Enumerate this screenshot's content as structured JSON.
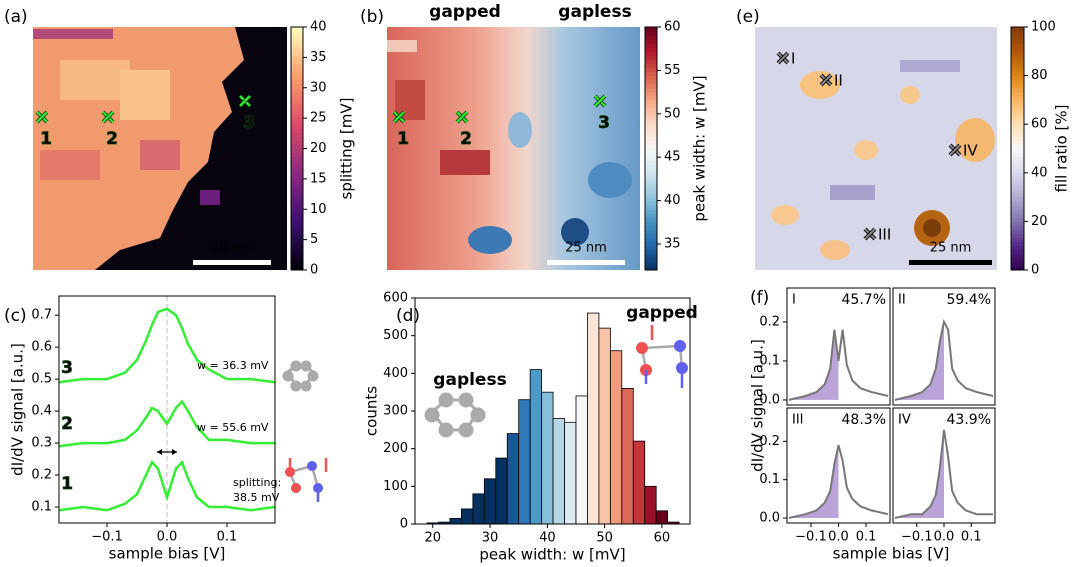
{
  "chart_data": [
    {
      "type": "heatmap",
      "panel": "(a)",
      "colorbar_label": "splitting [mV]",
      "clim": [
        0,
        40
      ],
      "cticks": [
        0,
        5,
        10,
        15,
        20,
        25,
        30,
        35,
        40
      ],
      "colormap": [
        "#000004",
        "#3b0f70",
        "#8c2981",
        "#de4968",
        "#fe9f6d",
        "#fcfdbf"
      ],
      "markers": [
        "1",
        "2",
        "3"
      ],
      "scalebar": "25 nm"
    },
    {
      "type": "heatmap",
      "panel": "(b)",
      "colorbar_label": "peak width: w [mV]",
      "clim": [
        32,
        60
      ],
      "cticks": [
        35,
        40,
        45,
        50,
        55,
        60
      ],
      "colormap": [
        "#053061",
        "#2166ac",
        "#4393c3",
        "#92c5de",
        "#d1e5f0",
        "#f7f7f7",
        "#fddbc7",
        "#f4a582",
        "#d6604d",
        "#b2182b",
        "#67001f"
      ],
      "markers": [
        "1",
        "2",
        "3"
      ],
      "scalebar": "25 nm",
      "annotations": [
        "gapped",
        "gapless"
      ]
    },
    {
      "type": "line",
      "panel": "(c)",
      "xlabel": "sample bias [V]",
      "ylabel": "dI/dV signal [a.u.]",
      "xlim": [
        -0.18,
        0.18
      ],
      "ylim": [
        0.05,
        0.76
      ],
      "xticks": [
        {
          "value": -0.1,
          "label": "−0.1"
        },
        {
          "value": 0,
          "label": "0.0"
        },
        0.1
      ],
      "yticks": [
        0.1,
        0.2,
        0.3,
        0.4,
        0.5,
        0.6,
        0.7
      ],
      "x": [
        -0.18,
        -0.14,
        -0.1,
        -0.07,
        -0.05,
        -0.035,
        -0.025,
        -0.015,
        0,
        0.015,
        0.025,
        0.035,
        0.05,
        0.07,
        0.1,
        0.14,
        0.18
      ],
      "series": [
        {
          "name": "1",
          "color": "#33ee33",
          "values": [
            0.09,
            0.1,
            0.09,
            0.11,
            0.14,
            0.2,
            0.24,
            0.22,
            0.13,
            0.22,
            0.24,
            0.19,
            0.13,
            0.1,
            0.1,
            0.09,
            0.1
          ]
        },
        {
          "name": "2",
          "color": "#33ee33",
          "values": [
            0.29,
            0.3,
            0.3,
            0.31,
            0.34,
            0.38,
            0.41,
            0.4,
            0.36,
            0.41,
            0.43,
            0.4,
            0.35,
            0.31,
            0.31,
            0.3,
            0.3
          ]
        },
        {
          "name": "3",
          "color": "#33ee33",
          "values": [
            0.49,
            0.5,
            0.5,
            0.52,
            0.56,
            0.62,
            0.67,
            0.71,
            0.72,
            0.7,
            0.66,
            0.61,
            0.56,
            0.53,
            0.5,
            0.5,
            0.49
          ]
        }
      ],
      "annotations": [
        "w = 36.3 mV",
        "w = 55.6 mV",
        "splitting:",
        "38.5 mV"
      ]
    },
    {
      "type": "histogram",
      "panel": "(d)",
      "xlabel": "peak width: w [mV]",
      "ylabel": "counts",
      "xlim": [
        16.9,
        64.9
      ],
      "ylim": [
        0,
        600
      ],
      "xticks": [
        20,
        30,
        40,
        50,
        60
      ],
      "yticks": [
        0,
        100,
        200,
        300,
        400,
        500,
        600
      ],
      "bins": [
        19,
        21,
        23,
        25,
        27,
        29,
        31,
        33,
        35,
        37,
        39,
        41,
        43,
        45,
        47,
        49,
        51,
        53,
        55,
        57,
        59,
        61,
        63
      ],
      "counts": [
        3,
        5,
        15,
        40,
        80,
        120,
        175,
        240,
        330,
        410,
        350,
        280,
        270,
        340,
        560,
        520,
        460,
        360,
        220,
        100,
        35,
        5
      ],
      "clim": [
        32,
        60
      ],
      "colormap": [
        "#053061",
        "#2166ac",
        "#4393c3",
        "#92c5de",
        "#d1e5f0",
        "#f7f7f7",
        "#fddbc7",
        "#f4a582",
        "#d6604d",
        "#b2182b",
        "#67001f"
      ],
      "annotations": [
        "gapless",
        "gapped"
      ]
    },
    {
      "type": "heatmap",
      "panel": "(e)",
      "colorbar_label": "fill ratio [%]",
      "clim": [
        0,
        100
      ],
      "cticks": [
        0,
        20,
        40,
        60,
        80,
        100
      ],
      "colormap": [
        "#2d004b",
        "#542788",
        "#8073ac",
        "#b2abd2",
        "#d8daeb",
        "#f7f7f7",
        "#fee0b6",
        "#fdb863",
        "#e08214",
        "#b35806",
        "#7f3b08"
      ],
      "markers": [
        "I",
        "II",
        "III",
        "IV"
      ],
      "scalebar": "25 nm"
    },
    {
      "type": "multiline",
      "panel": "(f)",
      "xlabel": "sample bias [V]",
      "ylabel": "dI/dV signal [a.u.]",
      "xlim": [
        -0.187,
        0.187
      ],
      "ylim": [
        -0.013,
        0.287
      ],
      "xticks": [
        {
          "value": -0.1,
          "label": "−0.1"
        },
        {
          "value": 0,
          "label": "0.0"
        },
        0.1
      ],
      "yticks": [
        {
          "value": 0,
          "label": "0.0"
        },
        0.1,
        0.2
      ],
      "color": "#777777",
      "fill_color": "#b9a3d9",
      "x": [
        -0.18,
        -0.12,
        -0.08,
        -0.05,
        -0.03,
        -0.015,
        0,
        0.015,
        0.03,
        0.05,
        0.08,
        0.12,
        0.18
      ],
      "panels": [
        {
          "label": "I",
          "annotation": "45.7%",
          "values": [
            0.0,
            0.01,
            0.02,
            0.04,
            0.08,
            0.18,
            0.1,
            0.18,
            0.09,
            0.05,
            0.03,
            0.02,
            0.01
          ]
        },
        {
          "label": "II",
          "annotation": "59.4%",
          "values": [
            0.0,
            0.01,
            0.02,
            0.04,
            0.08,
            0.15,
            0.2,
            0.18,
            0.08,
            0.05,
            0.03,
            0.02,
            0.01
          ]
        },
        {
          "label": "III",
          "annotation": "48.3%",
          "values": [
            0.0,
            0.01,
            0.02,
            0.04,
            0.07,
            0.14,
            0.19,
            0.15,
            0.08,
            0.05,
            0.03,
            0.02,
            0.01
          ]
        },
        {
          "label": "IV",
          "annotation": "43.9%",
          "values": [
            0.0,
            0.01,
            0.01,
            0.03,
            0.06,
            0.13,
            0.23,
            0.16,
            0.07,
            0.04,
            0.02,
            0.01,
            0.01
          ]
        }
      ]
    }
  ]
}
